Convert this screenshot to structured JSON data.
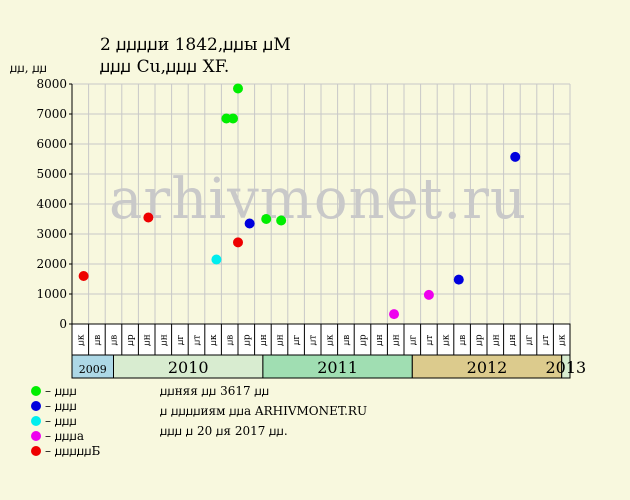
{
  "header": {
    "title_line1": "2 ꙡꙡꙡꙡи 1842,ꙡꙡы ꙡМ",
    "title_line2": "ꙡꙡꙡ Cu,ꙡꙡꙡ XF."
  },
  "watermark": "arhivmonet.ru",
  "info": {
    "line1": "ꙡꙡняя ꙡꙡ 3617 ꙡꙡ",
    "line2": "ꙡ ꙡꙡꙡꙡиям ꙡꙡа ARHIVMONET.RU",
    "line3": "ꙡꙡꙡ ꙡ 20 ꙡя 2017 ꙡꙡ."
  },
  "legend": [
    {
      "label": "– ꙡꙡꙡ",
      "color": "#00ee00"
    },
    {
      "label": "– ꙡꙡꙡ",
      "color": "#0000dd"
    },
    {
      "label": "– ꙡꙡꙡ",
      "color": "#00eeee"
    },
    {
      "label": "– ꙡꙡꙡа",
      "color": "#ee00ee"
    },
    {
      "label": "– ꙡꙡꙡꙡꙡБ",
      "color": "#ee0000"
    }
  ],
  "chart_data": {
    "type": "scatter",
    "ylabel": "ꙡꙡ, ꙡꙡ",
    "ylim": [
      0,
      8000
    ],
    "y_ticks": [
      "0",
      "1000",
      "2000",
      "3000",
      "4000",
      "5000",
      "6000",
      "7000",
      "8000"
    ],
    "month_labels": [
      "ꙡк",
      "ꙡв",
      "ꙡв",
      "ꙡр",
      "ꙡн",
      "ꙡн",
      "ꙡг",
      "ꙡт",
      "ꙡк",
      "ꙡв",
      "ꙡр",
      "ꙡн",
      "ꙡн",
      "ꙡг",
      "ꙡт",
      "ꙡк",
      "ꙡв",
      "ꙡр",
      "ꙡн",
      "ꙡн",
      "ꙡг",
      "ꙡт",
      "ꙡк",
      "ꙡв",
      "ꙡр",
      "ꙡн",
      "ꙡн",
      "ꙡг",
      "ꙡт",
      "ꙡк"
    ],
    "years": [
      {
        "label": "2009",
        "color": "#add8e6"
      },
      {
        "label": "2010",
        "color": "#d8ecd0"
      },
      {
        "label": "2011",
        "color": "#a0deb2"
      },
      {
        "label": "2012",
        "color": "#dccb8d"
      },
      {
        "label": "2013",
        "color": "#d8ecd0"
      }
    ],
    "grid": true,
    "points": [
      {
        "x": 0.2,
        "y": 1600,
        "color": "#ee0000"
      },
      {
        "x": 4.1,
        "y": 3550,
        "color": "#ee0000"
      },
      {
        "x": 8.2,
        "y": 2150,
        "color": "#00eeee"
      },
      {
        "x": 8.8,
        "y": 6850,
        "color": "#00ee00"
      },
      {
        "x": 9.2,
        "y": 6850,
        "color": "#00ee00"
      },
      {
        "x": 9.5,
        "y": 7850,
        "color": "#00ee00"
      },
      {
        "x": 9.5,
        "y": 2720,
        "color": "#ee0000"
      },
      {
        "x": 10.2,
        "y": 3350,
        "color": "#0000dd"
      },
      {
        "x": 11.2,
        "y": 3500,
        "color": "#00ee00"
      },
      {
        "x": 12.1,
        "y": 3450,
        "color": "#00ee00"
      },
      {
        "x": 18.9,
        "y": 330,
        "color": "#ee00ee"
      },
      {
        "x": 21.0,
        "y": 970,
        "color": "#ee00ee"
      },
      {
        "x": 22.8,
        "y": 1480,
        "color": "#0000dd"
      },
      {
        "x": 26.2,
        "y": 5570,
        "color": "#0000dd"
      }
    ]
  }
}
